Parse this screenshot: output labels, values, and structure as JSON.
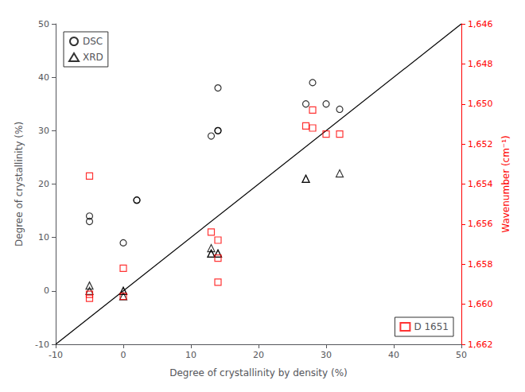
{
  "chart_data": {
    "type": "scatter",
    "xlabel": "Degree of crystallinity by density (%)",
    "ylabel": "Degree of crystallinity (%)",
    "y2label": "Wavenumber (cm⁻¹)",
    "xlim": [
      -10,
      50
    ],
    "ylim": [
      -10,
      50
    ],
    "y2lim": [
      1662,
      1646
    ],
    "xticks": [
      -10,
      0,
      10,
      20,
      30,
      40,
      50
    ],
    "yticks": [
      -10,
      0,
      10,
      20,
      30,
      40,
      50
    ],
    "y2ticks": [
      1646,
      1648,
      1650,
      1652,
      1654,
      1656,
      1658,
      1660,
      1662
    ],
    "grid": false,
    "series": [
      {
        "type": "line",
        "color": "#000000",
        "line_style": "solid",
        "x": [
          -10,
          50
        ],
        "values": [
          -10,
          50
        ]
      },
      {
        "name": "DSC",
        "type": "scatter",
        "marker": "circle",
        "color": "#000000",
        "legend": "upper left",
        "x": [
          -5,
          -5,
          0,
          2,
          2,
          13,
          14,
          14,
          14,
          27,
          28,
          30,
          32
        ],
        "values": [
          14,
          13,
          9,
          17,
          17,
          29,
          30,
          30,
          38,
          35,
          39,
          35,
          34
        ]
      },
      {
        "name": "XRD",
        "type": "scatter",
        "marker": "triangle",
        "color": "#000000",
        "legend": "upper left",
        "x": [
          -5,
          -5,
          0,
          0,
          0,
          13,
          13,
          13,
          14,
          14,
          27,
          27,
          32
        ],
        "values": [
          1,
          0,
          0,
          -1,
          0,
          8,
          7,
          7,
          7,
          7,
          21,
          21,
          22
        ]
      },
      {
        "name": "D 1651",
        "type": "scatter",
        "marker": "square",
        "color": "#ff0000",
        "legend": "lower right",
        "axis": "y2",
        "x": [
          -5,
          -5,
          0,
          0,
          13,
          14,
          14,
          14,
          27,
          28,
          28,
          30,
          32,
          -5
        ],
        "values": [
          1659.5,
          1659.7,
          1658.2,
          1659.6,
          1656.4,
          1656.8,
          1657.7,
          1658.9,
          1651.1,
          1650.3,
          1651.2,
          1651.5,
          1651.5,
          1653.6
        ]
      }
    ]
  }
}
